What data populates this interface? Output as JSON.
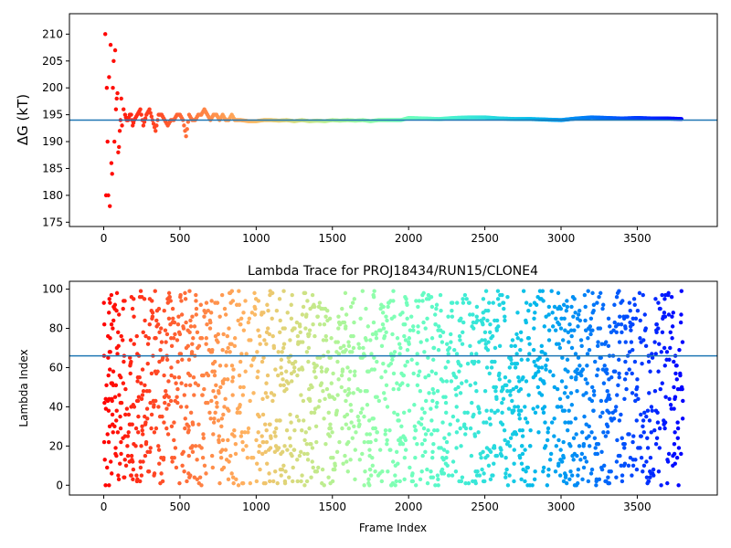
{
  "chart_data": [
    {
      "type": "scatter",
      "title": "",
      "xlabel": "",
      "ylabel": "ΔG (kT)",
      "xlim": [
        -225,
        4025
      ],
      "ylim": [
        174.2,
        213.8
      ],
      "xticks": [
        0,
        500,
        1000,
        1500,
        2000,
        2500,
        3000,
        3500
      ],
      "yticks": [
        175,
        180,
        185,
        190,
        195,
        200,
        205,
        210
      ],
      "hline": 194,
      "hline_color": "#1f77b4",
      "colormap": "rainbow (red at frame 0 to violet at final frame)",
      "series": [
        {
          "x": [
            10,
            15,
            20,
            25,
            30,
            35,
            40,
            45,
            50,
            55,
            60,
            65,
            70,
            75,
            80,
            85,
            90,
            95,
            100,
            105,
            110,
            115,
            120,
            130,
            140,
            150,
            160,
            170,
            180,
            190,
            200,
            220,
            240,
            260,
            280,
            300,
            320,
            340,
            360,
            380,
            400,
            420,
            440,
            460,
            480,
            500,
            520,
            540,
            560,
            580,
            600,
            620,
            640,
            660,
            680,
            700,
            720,
            740,
            760,
            780,
            800,
            820,
            840,
            860,
            880,
            900,
            950,
            1000,
            1050,
            1100,
            1150,
            1200,
            1250,
            1300,
            1350,
            1400,
            1450,
            1500,
            1550,
            1600,
            1650,
            1700,
            1750,
            1800,
            1850,
            1900,
            1950,
            2000,
            2100,
            2200,
            2300,
            2400,
            2500,
            2600,
            2700,
            2800,
            2900,
            3000,
            3100,
            3200,
            3300,
            3400,
            3500,
            3600,
            3700,
            3790
          ],
          "y": [
            210,
            180,
            200,
            190,
            180,
            202,
            178,
            208,
            186,
            184,
            200,
            205,
            190,
            207,
            196,
            198,
            199,
            188,
            189,
            192,
            194,
            198,
            193,
            196,
            195,
            194,
            194,
            195,
            195,
            193,
            194,
            195,
            196,
            193,
            195,
            196,
            194,
            192,
            195,
            195,
            194,
            193,
            194,
            194,
            195,
            195,
            194,
            191,
            195,
            194,
            194,
            195,
            195,
            196,
            195,
            194,
            195,
            195,
            194,
            195,
            194,
            194,
            195,
            194,
            194,
            194,
            193.8,
            193.8,
            194,
            194,
            193.9,
            194,
            193.8,
            194,
            193.8,
            193.9,
            193.8,
            194,
            193.9,
            194,
            193.9,
            194,
            193.8,
            194,
            194,
            194,
            194,
            194.4,
            194.3,
            194.2,
            194.4,
            194.5,
            194.5,
            194.3,
            194.2,
            194.2,
            194.1,
            194,
            194.3,
            194.5,
            194.4,
            194.3,
            194.4,
            194.3,
            194.3,
            194.2
          ]
        }
      ]
    },
    {
      "type": "scatter",
      "title": "Lambda Trace for PROJ18434/RUN15/CLONE4",
      "xlabel": "Frame Index",
      "ylabel": "Lambda Index",
      "xlim": [
        -225,
        4025
      ],
      "ylim": [
        -5,
        104
      ],
      "xticks": [
        0,
        500,
        1000,
        1500,
        2000,
        2500,
        3000,
        3500
      ],
      "yticks": [
        0,
        20,
        40,
        60,
        80,
        100
      ],
      "hline": 66,
      "hline_color": "#1f77b4",
      "colormap": "rainbow (red at frame 0 to violet at final frame)",
      "n_frames": 3800,
      "lambda_min": 0,
      "lambda_max": 99
    }
  ]
}
